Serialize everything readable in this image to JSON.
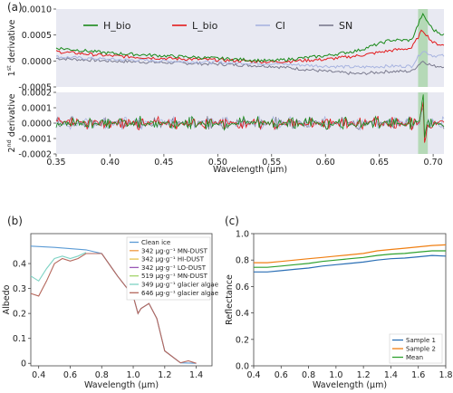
{
  "colors": {
    "h_bio": "#1a8a1a",
    "l_bio": "#e31a1c",
    "ci": "#a8b4e0",
    "sn": "#7a7a8e",
    "panel_bg": "#e8e9f2",
    "highlight": "#a8d5a8",
    "c_sample1": "#2b6fb5",
    "c_sample2": "#f07f12",
    "c_mean": "#2fa12f",
    "b_clean_ice": "#5b9bd5",
    "b_mn_dust_342": "#f09a42",
    "b_hi_dust": "#e6c24a",
    "b_lo_dust": "#9b59b6",
    "b_mn_dust_519": "#a4d46b",
    "b_algae_349": "#7ed3c4",
    "b_algae_646": "#b5675c"
  },
  "chart_data": [
    {
      "id": "a",
      "panel_label": "(a)",
      "type": "line",
      "xlabel": "Wavelength (μm)",
      "xlim": [
        0.35,
        0.71
      ],
      "xticks": [
        "0.35",
        "0.40",
        "0.45",
        "0.50",
        "0.55",
        "0.60",
        "0.65",
        "0.70"
      ],
      "highlight_band": [
        0.686,
        0.695
      ],
      "subplots": [
        {
          "ylabel": "1st derivative",
          "ylim": [
            -0.0005,
            0.001
          ],
          "yticks": [
            "0.0010",
            "0.0005",
            "0.0000",
            "-0.0005"
          ],
          "legend": [
            "H_bio",
            "L_bio",
            "CI",
            "SN"
          ],
          "series": [
            {
              "name": "H_bio",
              "points": [
                [
                  0.35,
                  0.00025
                ],
                [
                  0.4,
                  0.00015
                ],
                [
                  0.45,
                  0.0001
                ],
                [
                  0.5,
                  5e-05
                ],
                [
                  0.55,
                  0.0
                ],
                [
                  0.6,
                  0.0001
                ],
                [
                  0.63,
                  0.0002
                ],
                [
                  0.66,
                  0.0004
                ],
                [
                  0.68,
                  0.0004
                ],
                [
                  0.69,
                  0.0009
                ],
                [
                  0.7,
                  0.0006
                ],
                [
                  0.71,
                  0.0005
                ]
              ]
            },
            {
              "name": "L_bio",
              "points": [
                [
                  0.35,
                  0.00018
                ],
                [
                  0.4,
                  0.0001
                ],
                [
                  0.45,
                  5e-05
                ],
                [
                  0.5,
                  2e-05
                ],
                [
                  0.55,
                  -2e-05
                ],
                [
                  0.6,
                  3e-05
                ],
                [
                  0.63,
                  0.0001
                ],
                [
                  0.66,
                  0.0002
                ],
                [
                  0.68,
                  0.00025
                ],
                [
                  0.69,
                  0.0006
                ],
                [
                  0.7,
                  0.00035
                ],
                [
                  0.71,
                  0.0003
                ]
              ]
            },
            {
              "name": "CI",
              "points": [
                [
                  0.35,
                  8e-05
                ],
                [
                  0.4,
                  3e-05
                ],
                [
                  0.45,
                  0.0
                ],
                [
                  0.5,
                  -3e-05
                ],
                [
                  0.55,
                  -5e-05
                ],
                [
                  0.6,
                  -0.0001
                ],
                [
                  0.63,
                  -0.00012
                ],
                [
                  0.66,
                  -0.0001
                ],
                [
                  0.68,
                  -0.0001
                ],
                [
                  0.69,
                  0.0002
                ],
                [
                  0.7,
                  0.0001
                ],
                [
                  0.71,
                  0.0001
                ]
              ]
            },
            {
              "name": "SN",
              "points": [
                [
                  0.35,
                  5e-05
                ],
                [
                  0.4,
                  0.0
                ],
                [
                  0.45,
                  -3e-05
                ],
                [
                  0.5,
                  -6e-05
                ],
                [
                  0.55,
                  -0.0001
                ],
                [
                  0.6,
                  -0.0002
                ],
                [
                  0.63,
                  -0.00025
                ],
                [
                  0.66,
                  -0.0002
                ],
                [
                  0.68,
                  -0.0002
                ],
                [
                  0.69,
                  0.0
                ],
                [
                  0.7,
                  -0.0001
                ],
                [
                  0.71,
                  -0.0001
                ]
              ]
            }
          ]
        },
        {
          "ylabel": "2nd derivative",
          "ylim": [
            -0.0002,
            0.0002
          ],
          "yticks": [
            "0.0002",
            "0.0001",
            "0.0000",
            "-0.0001",
            "-0.0002"
          ],
          "series_note_names": [
            "H_bio",
            "L_bio",
            "CI",
            "SN"
          ],
          "amplitude": [
            3e-05,
            3e-05,
            3e-05,
            3e-05
          ],
          "spike": {
            "x": 0.691,
            "max": 0.00016,
            "min": -0.00015
          }
        }
      ]
    },
    {
      "id": "b",
      "panel_label": "(b)",
      "type": "line",
      "xlabel": "Wavelength (μm)",
      "ylabel": "Albedo",
      "xlim": [
        0.35,
        1.5
      ],
      "ylim": [
        -0.01,
        0.52
      ],
      "xticks": [
        "0.4",
        "0.6",
        "0.8",
        "1.0",
        "1.2",
        "1.4"
      ],
      "yticks": [
        "0",
        "0.1",
        "0.2",
        "0.3",
        "0.4"
      ],
      "legend": [
        "Clean ice",
        "342 μg·g⁻¹ MN-DUST",
        "342 μg·g⁻¹ HI-DUST",
        "342 μg·g⁻¹ LO-DUST",
        "519 μg·g⁻¹ MN-DUST",
        "349 μg·g⁻¹ glacier algae",
        "646 μg·g⁻¹ glacier algae"
      ],
      "series": [
        {
          "name": "Clean ice",
          "points": [
            [
              0.35,
              0.47
            ],
            [
              0.5,
              0.465
            ],
            [
              0.7,
              0.455
            ],
            [
              0.8,
              0.44
            ],
            [
              0.9,
              0.35
            ],
            [
              1.0,
              0.27
            ],
            [
              1.03,
              0.2
            ],
            [
              1.05,
              0.22
            ],
            [
              1.1,
              0.24
            ],
            [
              1.15,
              0.18
            ],
            [
              1.2,
              0.05
            ],
            [
              1.3,
              0.002
            ],
            [
              1.4,
              0.0
            ]
          ]
        },
        {
          "name": "349 μg·g⁻¹ glacier algae",
          "points": [
            [
              0.35,
              0.35
            ],
            [
              0.4,
              0.33
            ],
            [
              0.45,
              0.38
            ],
            [
              0.5,
              0.42
            ],
            [
              0.55,
              0.43
            ],
            [
              0.6,
              0.42
            ],
            [
              0.65,
              0.43
            ],
            [
              0.7,
              0.445
            ]
          ]
        },
        {
          "name": "646 μg·g⁻¹ glacier algae",
          "points": [
            [
              0.35,
              0.28
            ],
            [
              0.4,
              0.27
            ],
            [
              0.45,
              0.33
            ],
            [
              0.5,
              0.4
            ],
            [
              0.55,
              0.42
            ],
            [
              0.6,
              0.41
            ],
            [
              0.65,
              0.42
            ],
            [
              0.7,
              0.44
            ],
            [
              0.8,
              0.44
            ],
            [
              0.9,
              0.35
            ],
            [
              1.0,
              0.27
            ],
            [
              1.03,
              0.2
            ],
            [
              1.05,
              0.22
            ],
            [
              1.1,
              0.24
            ],
            [
              1.15,
              0.18
            ],
            [
              1.2,
              0.05
            ],
            [
              1.3,
              0.002
            ],
            [
              1.35,
              0.01
            ],
            [
              1.4,
              0.0
            ]
          ]
        }
      ]
    },
    {
      "id": "c",
      "panel_label": "(c)",
      "type": "line",
      "xlabel": "Wavelength (μm)",
      "ylabel": "Reflectance",
      "xlim": [
        0.4,
        1.8
      ],
      "ylim": [
        0.0,
        1.0
      ],
      "xticks": [
        "0.4",
        "0.6",
        "0.8",
        "1.0",
        "1.2",
        "1.4",
        "1.6",
        "1.8"
      ],
      "yticks": [
        "0.0",
        "0.2",
        "0.4",
        "0.6",
        "0.8",
        "1.0"
      ],
      "legend": [
        "Sample 1",
        "Sample 2",
        "Mean"
      ],
      "series": [
        {
          "name": "Sample 1",
          "points": [
            [
              0.4,
              0.71
            ],
            [
              0.5,
              0.71
            ],
            [
              0.6,
              0.72
            ],
            [
              0.7,
              0.73
            ],
            [
              0.8,
              0.74
            ],
            [
              0.9,
              0.755
            ],
            [
              1.0,
              0.765
            ],
            [
              1.1,
              0.775
            ],
            [
              1.2,
              0.785
            ],
            [
              1.3,
              0.8
            ],
            [
              1.4,
              0.81
            ],
            [
              1.5,
              0.815
            ],
            [
              1.6,
              0.825
            ],
            [
              1.7,
              0.835
            ],
            [
              1.8,
              0.83
            ]
          ]
        },
        {
          "name": "Sample 2",
          "points": [
            [
              0.4,
              0.78
            ],
            [
              0.5,
              0.78
            ],
            [
              0.6,
              0.79
            ],
            [
              0.7,
              0.8
            ],
            [
              0.8,
              0.81
            ],
            [
              0.9,
              0.82
            ],
            [
              1.0,
              0.83
            ],
            [
              1.1,
              0.84
            ],
            [
              1.2,
              0.85
            ],
            [
              1.3,
              0.87
            ],
            [
              1.4,
              0.88
            ],
            [
              1.5,
              0.89
            ],
            [
              1.6,
              0.9
            ],
            [
              1.7,
              0.91
            ],
            [
              1.8,
              0.915
            ]
          ]
        },
        {
          "name": "Mean",
          "points": [
            [
              0.4,
              0.745
            ],
            [
              0.5,
              0.745
            ],
            [
              0.6,
              0.755
            ],
            [
              0.7,
              0.765
            ],
            [
              0.8,
              0.775
            ],
            [
              0.9,
              0.79
            ],
            [
              1.0,
              0.8
            ],
            [
              1.1,
              0.81
            ],
            [
              1.2,
              0.82
            ],
            [
              1.3,
              0.835
            ],
            [
              1.4,
              0.845
            ],
            [
              1.5,
              0.85
            ],
            [
              1.6,
              0.86
            ],
            [
              1.7,
              0.87
            ],
            [
              1.8,
              0.87
            ]
          ]
        }
      ]
    }
  ]
}
